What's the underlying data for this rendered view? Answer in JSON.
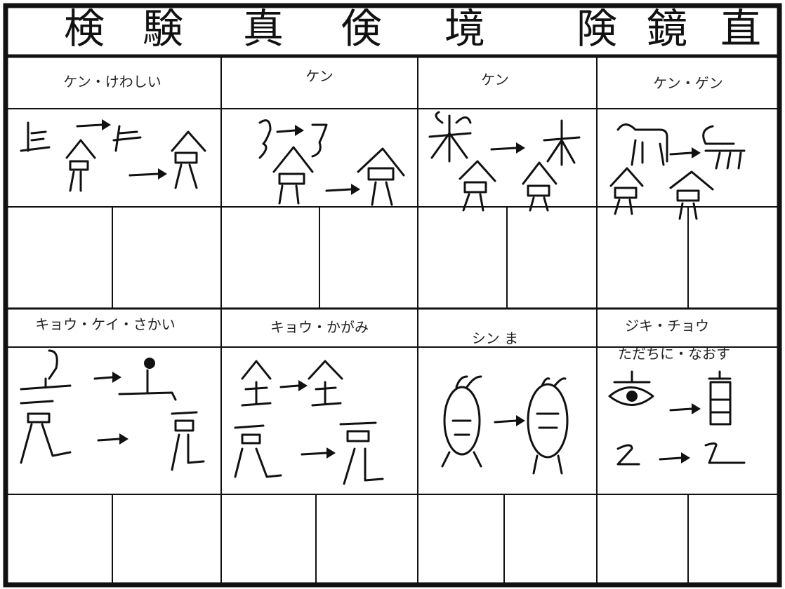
{
  "header": {
    "characters": [
      "検",
      "験",
      "真",
      "倹",
      "境",
      "険",
      "鏡",
      "直"
    ]
  },
  "rows": [
    {
      "readings": [
        [
          "ケン・けわしい"
        ],
        [
          "ケン"
        ],
        [
          "ケン"
        ],
        [
          "ケン・ゲン"
        ]
      ]
    },
    {
      "readings": [
        [
          "キョウ・ケイ・さかい"
        ],
        [
          "キョウ・かがみ"
        ],
        [
          "シン ま"
        ],
        [
          "ジキ・チョウ",
          "ただちに・なおす"
        ]
      ]
    }
  ]
}
